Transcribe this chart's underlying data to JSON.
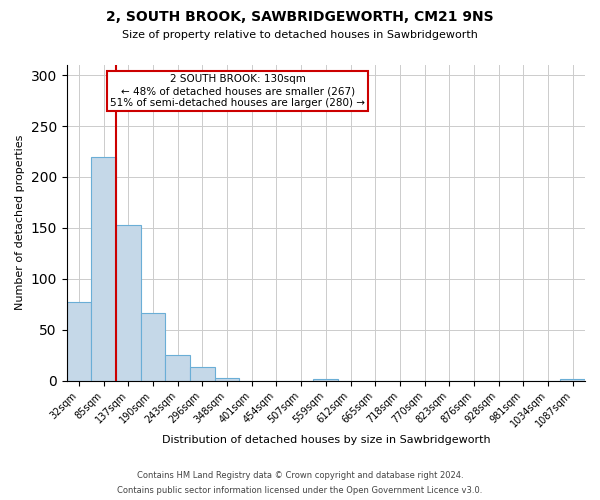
{
  "title": "2, SOUTH BROOK, SAWBRIDGEWORTH, CM21 9NS",
  "subtitle": "Size of property relative to detached houses in Sawbridgeworth",
  "xlabel": "Distribution of detached houses by size in Sawbridgeworth",
  "ylabel": "Number of detached properties",
  "bar_values": [
    77,
    220,
    153,
    66,
    25,
    13,
    3,
    0,
    0,
    0,
    2,
    0,
    0,
    0,
    0,
    0,
    0,
    0,
    0,
    0,
    2
  ],
  "bar_labels": [
    "32sqm",
    "85sqm",
    "137sqm",
    "190sqm",
    "243sqm",
    "296sqm",
    "348sqm",
    "401sqm",
    "454sqm",
    "507sqm",
    "559sqm",
    "612sqm",
    "665sqm",
    "718sqm",
    "770sqm",
    "823sqm",
    "876sqm",
    "928sqm",
    "981sqm",
    "1034sqm",
    "1087sqm"
  ],
  "bar_color": "#c5d8e8",
  "bar_edge_color": "#6aaed6",
  "ylim": [
    0,
    310
  ],
  "yticks": [
    0,
    50,
    100,
    150,
    200,
    250,
    300
  ],
  "property_line_color": "#cc0000",
  "annotation_title": "2 SOUTH BROOK: 130sqm",
  "annotation_line1": "← 48% of detached houses are smaller (267)",
  "annotation_line2": "51% of semi-detached houses are larger (280) →",
  "annotation_box_color": "#cc0000",
  "footnote1": "Contains HM Land Registry data © Crown copyright and database right 2024.",
  "footnote2": "Contains public sector information licensed under the Open Government Licence v3.0.",
  "background_color": "#ffffff",
  "grid_color": "#cccccc"
}
